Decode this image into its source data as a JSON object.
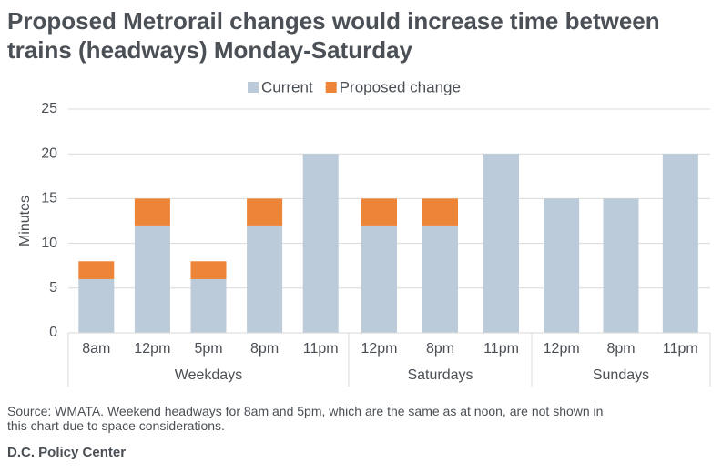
{
  "chart_data": {
    "type": "stacked-bar",
    "title": [
      "Proposed Metrorail changes would increase time between",
      "trains (headways) Monday-Saturday"
    ],
    "y_label": "Minutes",
    "groups": [
      {
        "name": "Weekdays",
        "categories": [
          "8am",
          "12pm",
          "5pm",
          "8pm",
          "11pm"
        ]
      },
      {
        "name": "Saturdays",
        "categories": [
          "12pm",
          "8pm",
          "11pm"
        ]
      },
      {
        "name": "Sundays",
        "categories": [
          "12pm",
          "8pm",
          "11pm"
        ]
      }
    ],
    "series": [
      {
        "name": "Current",
        "color": "#bccbda",
        "values": [
          6,
          12,
          6,
          12,
          20,
          12,
          12,
          20,
          15,
          15,
          20
        ]
      },
      {
        "name": "Proposed change",
        "color": "#ed8539",
        "values": [
          2,
          3,
          2,
          3,
          0,
          3,
          3,
          0,
          0,
          0,
          0
        ]
      }
    ],
    "ylim": [
      0,
      25
    ],
    "yticks": [
      0,
      5,
      10,
      15,
      20,
      25
    ],
    "grid": true,
    "legend": "top",
    "source": [
      "Source: WMATA. Weekend headways for 8am and 5pm, which are the same as at noon, are not shown in",
      "this chart due to space considerations."
    ],
    "credit": "D.C. Policy Center"
  }
}
